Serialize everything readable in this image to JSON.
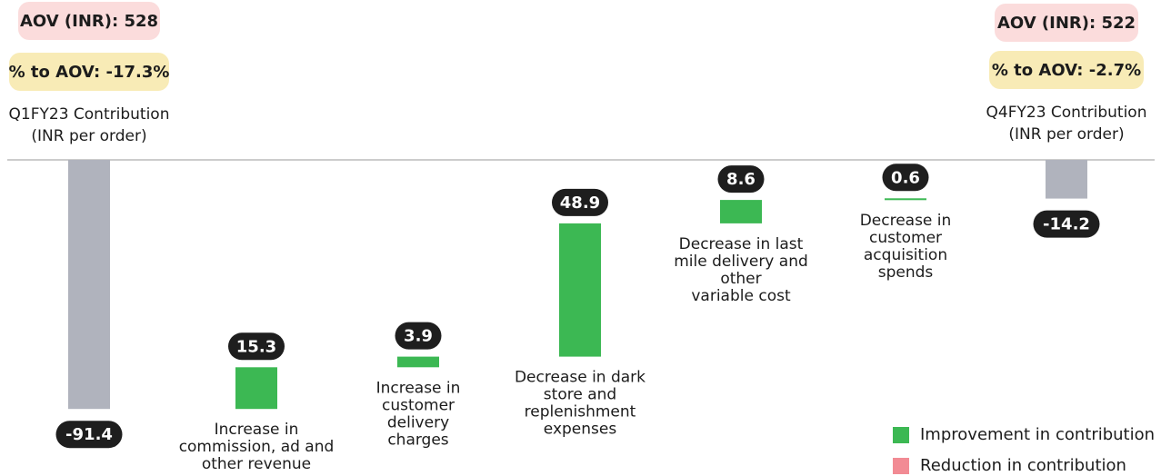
{
  "header": {
    "start": {
      "aov": "AOV (INR): 528",
      "pct": "% to AOV: -17.3%",
      "label_line1": "Q1FY23 Contribution",
      "label_line2": "(INR per order)"
    },
    "end": {
      "aov": "AOV (INR): 522",
      "pct": "% to AOV: -2.7%",
      "label_line1": "Q4FY23 Contribution",
      "label_line2": "(INR per order)"
    }
  },
  "legend": {
    "improvement": "Improvement in contribution",
    "reduction": "Reduction in contribution"
  },
  "colors": {
    "total": "#b0b3bd",
    "improvement": "#3cb853",
    "reduction": "#f28b94",
    "label_bg": "#1e1e1e",
    "baseline": "#cccccc"
  },
  "chart_data": {
    "type": "bar",
    "subtype": "waterfall",
    "categories": [
      "Q1FY23 Contribution (INR per order)",
      "Increase in commission, ad and other revenue",
      "Increase in customer delivery charges",
      "Decrease in dark store and replenishment expenses",
      "Decrease in last mile delivery and other variable cost",
      "Decrease in customer acquisition spends",
      "Q4FY23 Contribution (INR per order)"
    ],
    "category_lines": [
      [],
      [
        "Increase in",
        "commission, ad and",
        "other revenue"
      ],
      [
        "Increase in",
        "customer",
        "delivery",
        "charges"
      ],
      [
        "Decrease in dark",
        "store and",
        "replenishment",
        "expenses"
      ],
      [
        "Decrease in last",
        "mile delivery and",
        "other",
        "variable cost"
      ],
      [
        "Decrease in",
        "customer",
        "acquisition",
        "spends"
      ],
      []
    ],
    "values": [
      -91.4,
      15.3,
      3.9,
      48.9,
      8.6,
      0.6,
      -14.2
    ],
    "value_labels": [
      "-91.4",
      "15.3",
      "3.9",
      "48.9",
      "8.6",
      "0.6",
      "-14.2"
    ],
    "kinds": [
      "total",
      "improvement",
      "improvement",
      "improvement",
      "improvement",
      "improvement",
      "total"
    ],
    "ylim": [
      -91.4,
      0
    ],
    "grid": false,
    "legend_position": "bottom-right"
  }
}
